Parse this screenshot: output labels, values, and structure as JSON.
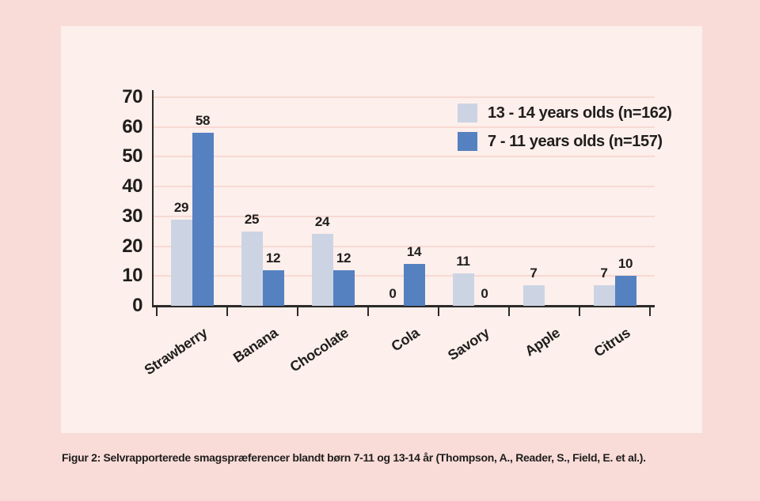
{
  "colors": {
    "outer_bg": "#f9dcd8",
    "panel_bg": "#fdefeb",
    "gridline": "#f7d9d3",
    "axis": "#2b2a29",
    "text": "#1f1e1d",
    "series_13_14": "#ccd4e4",
    "series_7_11": "#5581c1"
  },
  "chart_data": {
    "type": "bar",
    "categories": [
      "Strawberry",
      "Banana",
      "Chocolate",
      "Cola",
      "Savory",
      "Apple",
      "Citrus"
    ],
    "series": [
      {
        "name": "13 - 14 years olds (n=162)",
        "color": "#ccd4e4",
        "values": [
          29,
          25,
          24,
          0,
          11,
          7,
          7
        ]
      },
      {
        "name": "7 - 11 years olds (n=157)",
        "color": "#5581c1",
        "values": [
          58,
          12,
          12,
          14,
          0,
          null,
          10
        ]
      }
    ],
    "title": "",
    "xlabel": "",
    "ylabel": "",
    "ylim": [
      0,
      70
    ],
    "yticks": [
      0,
      10,
      20,
      30,
      40,
      50,
      60,
      70
    ],
    "grid": true,
    "legend_position": "top-right",
    "bar_value_labels_shown": true
  },
  "caption": "Figur 2: Selvrapporterede smagspræferencer blandt børn 7-11 og 13-14 år (Thompson, A., Reader, S., Field, E. et al.)."
}
